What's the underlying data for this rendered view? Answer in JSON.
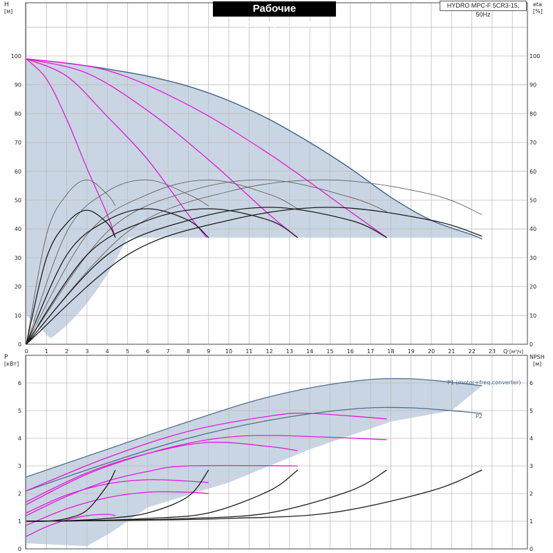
{
  "title": "Рабочие характеристики",
  "model": "HYDRO MPC-F 5CR3-15, 50Hz",
  "colors": {
    "shade": "#c9d5e3",
    "envelope": "#3c6187",
    "head_speed": "#e01ad8",
    "eff_thin": "#606060",
    "eff_thick": "#1b1b1b",
    "p1": "#4e6d8f",
    "grid": "#bdbdbd"
  },
  "chart_data": [
    {
      "type": "line",
      "panel": "head",
      "ylabel_left": "H",
      "ylabel_left_unit": "[м]",
      "ylabel_right": "eta",
      "ylabel_right_unit": "[%]",
      "xlabel": "Q",
      "xlabel_unit": "[м³/ч]",
      "xlim": [
        0,
        25
      ],
      "ylim": [
        0,
        100
      ],
      "x_ticks": [
        "0",
        "1",
        "2",
        "3",
        "4",
        "5",
        "6",
        "7",
        "8",
        "9",
        "10",
        "11",
        "12",
        "13",
        "14",
        "15",
        "16",
        "17",
        "18",
        "19",
        "20",
        "21",
        "22",
        "23"
      ],
      "y_ticks": [
        "0",
        "10",
        "20",
        "30",
        "40",
        "50",
        "60",
        "70",
        "80",
        "90",
        "100"
      ],
      "y_right_ticks": [
        "0",
        "10",
        "20",
        "30",
        "40",
        "50",
        "60",
        "70",
        "80",
        "90",
        "100"
      ],
      "series": [
        {
          "key": "env",
          "role": "envelope",
          "x": [
            0,
            2,
            4,
            6,
            8,
            10,
            12,
            14,
            16,
            18,
            20,
            22,
            22.5
          ],
          "y": [
            99,
            97.5,
            95.5,
            93,
            89.5,
            84.5,
            78,
            70,
            61,
            51,
            43,
            38,
            36.5
          ]
        },
        {
          "key": "h1",
          "role": "head_speed",
          "x": [
            0,
            1,
            2,
            3,
            4,
            4.4
          ],
          "y": [
            99,
            92,
            78,
            61,
            45,
            37
          ]
        },
        {
          "key": "h2",
          "role": "head_speed",
          "x": [
            0,
            2,
            4,
            6,
            8,
            8.9
          ],
          "y": [
            99,
            93,
            79,
            64,
            45,
            37
          ]
        },
        {
          "key": "h3",
          "role": "head_speed",
          "x": [
            0,
            3,
            6,
            9,
            12,
            13.4
          ],
          "y": [
            99,
            94,
            81,
            64,
            45,
            37
          ]
        },
        {
          "key": "h4",
          "role": "head_speed",
          "x": [
            0,
            4,
            8,
            12,
            16,
            17.8
          ],
          "y": [
            99,
            95,
            83,
            66,
            46,
            37
          ]
        },
        {
          "key": "e1",
          "role": "eff_thin",
          "x": [
            0,
            1,
            2,
            3,
            4,
            4.4
          ],
          "y": [
            0,
            38,
            52,
            57,
            52,
            48
          ]
        },
        {
          "key": "e2",
          "role": "eff_thin",
          "x": [
            0,
            2,
            4,
            6,
            8,
            9
          ],
          "y": [
            0,
            39,
            53,
            57,
            52,
            48
          ]
        },
        {
          "key": "e3",
          "role": "eff_thin",
          "x": [
            0,
            3,
            6,
            9,
            12,
            13.4
          ],
          "y": [
            0,
            38,
            52,
            57,
            52,
            47
          ]
        },
        {
          "key": "e4",
          "role": "eff_thin",
          "x": [
            0,
            4,
            8,
            12,
            16,
            17.8
          ],
          "y": [
            0,
            39,
            53,
            57,
            51,
            46
          ]
        },
        {
          "key": "e5",
          "role": "eff_thin",
          "x": [
            0,
            5,
            10,
            15,
            20,
            22.5
          ],
          "y": [
            0,
            39,
            53,
            57,
            52,
            45
          ]
        },
        {
          "key": "e6",
          "role": "eff_thick",
          "x": [
            0,
            1,
            2,
            3,
            4,
            4.4
          ],
          "y": [
            0,
            30,
            42,
            46.5,
            42,
            37
          ]
        },
        {
          "key": "e7",
          "role": "eff_thick",
          "x": [
            0,
            2,
            4,
            6,
            8,
            9
          ],
          "y": [
            0,
            31,
            43,
            47,
            43,
            37
          ]
        },
        {
          "key": "e8",
          "role": "eff_thick",
          "x": [
            0,
            3,
            6,
            9,
            12,
            13.4
          ],
          "y": [
            0,
            31,
            43,
            47,
            43,
            37
          ]
        },
        {
          "key": "e9",
          "role": "eff_thick",
          "x": [
            0,
            4,
            8,
            12,
            16,
            17.8
          ],
          "y": [
            0,
            31,
            43,
            47.5,
            43,
            37
          ]
        },
        {
          "key": "e10",
          "role": "eff_thick",
          "x": [
            0,
            5,
            10,
            15,
            20,
            22.5
          ],
          "y": [
            0,
            31,
            43,
            47.5,
            43,
            37.5
          ]
        }
      ]
    },
    {
      "type": "line",
      "panel": "power",
      "ylabel_left": "P",
      "ylabel_left_unit": "[кВт]",
      "ylabel_right": "NPSH",
      "ylabel_right_unit": "[м]",
      "xlim": [
        0,
        25
      ],
      "ylim": [
        0,
        6.8
      ],
      "y_ticks": [
        "0",
        "1",
        "2",
        "3",
        "4",
        "5",
        "6"
      ],
      "y_right_ticks": [
        "0",
        "1",
        "2",
        "3",
        "4",
        "5",
        "6"
      ],
      "series": [
        {
          "key": "p1",
          "name": "P1 (motor+freq.converter)",
          "role": "p1",
          "x": [
            0,
            4,
            8,
            12,
            16,
            19,
            22.5
          ],
          "y": [
            2.6,
            3.6,
            4.6,
            5.5,
            6.05,
            6.15,
            5.9
          ]
        },
        {
          "key": "p2",
          "name": "P2",
          "role": "p1",
          "x": [
            0,
            4,
            8,
            12,
            16,
            19,
            22.5
          ],
          "y": [
            2.1,
            3.1,
            4,
            4.65,
            5.05,
            5.1,
            4.9
          ]
        },
        {
          "key": "m1",
          "role": "head_speed",
          "x": [
            0,
            4,
            8,
            12,
            14,
            17.8
          ],
          "y": [
            2.1,
            3.3,
            4.25,
            4.8,
            4.9,
            4.7
          ]
        },
        {
          "key": "m2",
          "role": "head_speed",
          "x": [
            0,
            3,
            6,
            9,
            12,
            13.4
          ],
          "y": [
            1.7,
            2.75,
            3.45,
            3.85,
            3.7,
            3.55
          ]
        },
        {
          "key": "m3",
          "role": "head_speed",
          "x": [
            0,
            3,
            6,
            9,
            12,
            17.8
          ],
          "y": [
            1.6,
            2.7,
            3.45,
            3.95,
            4.1,
            3.95
          ]
        },
        {
          "key": "m4",
          "role": "head_speed",
          "x": [
            0,
            2,
            4,
            6,
            8,
            9
          ],
          "y": [
            1.3,
            1.95,
            2.35,
            2.5,
            2.45,
            2.4
          ]
        },
        {
          "key": "m5",
          "role": "head_speed",
          "x": [
            0,
            2,
            4,
            6,
            8,
            13.4
          ],
          "y": [
            1.2,
            1.9,
            2.45,
            2.8,
            3.0,
            3.0
          ]
        },
        {
          "key": "m6",
          "role": "head_speed",
          "x": [
            0,
            1,
            2,
            3,
            4,
            4.4
          ],
          "y": [
            0.45,
            0.8,
            1.05,
            1.2,
            1.25,
            1.2
          ]
        },
        {
          "key": "m7",
          "role": "head_speed",
          "x": [
            0,
            2,
            4,
            6,
            8,
            9
          ],
          "y": [
            0.85,
            1.45,
            1.85,
            2.05,
            2.05,
            2.0
          ]
        },
        {
          "key": "n1",
          "role": "eff_thick",
          "x": [
            0,
            1,
            2,
            3,
            4,
            4.4
          ],
          "y": [
            1.0,
            1.0,
            1.1,
            1.4,
            2.3,
            2.85
          ]
        },
        {
          "key": "n2",
          "role": "eff_thick",
          "x": [
            0,
            2,
            4,
            6,
            8,
            9
          ],
          "y": [
            1.0,
            1.02,
            1.1,
            1.3,
            1.9,
            2.85
          ]
        },
        {
          "key": "n3",
          "role": "eff_thick",
          "x": [
            0,
            3,
            6,
            9,
            12,
            13.4
          ],
          "y": [
            1.0,
            1.02,
            1.1,
            1.3,
            2.1,
            2.85
          ]
        },
        {
          "key": "n4",
          "role": "eff_thick",
          "x": [
            0,
            4,
            8,
            12,
            16,
            17.8
          ],
          "y": [
            1.0,
            1.03,
            1.1,
            1.3,
            2.1,
            2.85
          ]
        },
        {
          "key": "n5",
          "role": "eff_thick",
          "x": [
            0,
            5,
            10,
            15,
            20,
            22.5
          ],
          "y": [
            1.0,
            1.03,
            1.1,
            1.3,
            2.1,
            2.85
          ]
        }
      ]
    }
  ]
}
